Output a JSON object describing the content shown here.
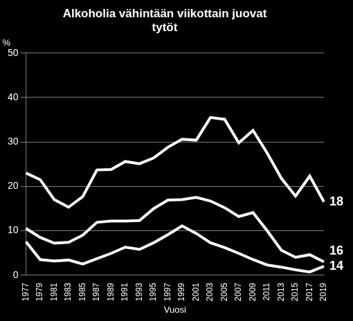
{
  "chart_data": {
    "type": "line",
    "title": "Alkoholia vähintään viikottain juovat tytöt",
    "x_label": "Vuosi",
    "y_label": "%",
    "categories": [
      "1977",
      "1979",
      "1981",
      "1983",
      "1985",
      "1987",
      "1989",
      "1991",
      "1993",
      "1995",
      "1997",
      "1999",
      "2001",
      "2003",
      "2005",
      "2007",
      "2009",
      "2011",
      "2013",
      "2015",
      "2017",
      "2019"
    ],
    "series": [
      {
        "name": "18",
        "color": "#ffffff",
        "values": [
          23,
          21.5,
          17,
          15.3,
          17.7,
          23.7,
          23.8,
          25.6,
          25.1,
          26.4,
          28.8,
          30.6,
          30.4,
          35.5,
          35.1,
          29.8,
          32.6,
          27.5,
          21.8,
          17.8,
          22.3,
          16.5
        ]
      },
      {
        "name": "16",
        "color": "#ffffff",
        "values": [
          10.5,
          8.5,
          7.2,
          7.4,
          9,
          11.9,
          12.2,
          12.2,
          12.3,
          15,
          16.9,
          17,
          17.5,
          16.7,
          15.2,
          13.2,
          14.1,
          10,
          5.6,
          4,
          4.6,
          3
        ]
      },
      {
        "name": "14",
        "color": "#ffffff",
        "values": [
          7.5,
          3.5,
          3.2,
          3.4,
          2.5,
          3.7,
          4.9,
          6.3,
          5.8,
          7.3,
          9.1,
          11.1,
          9.4,
          7.3,
          6.2,
          4.9,
          3.5,
          2.3,
          1.8,
          1.2,
          0.7,
          2
        ]
      }
    ],
    "ylim": [
      0,
      50
    ],
    "yticks": [
      0,
      10,
      20,
      30,
      40,
      50
    ],
    "grid": true
  }
}
